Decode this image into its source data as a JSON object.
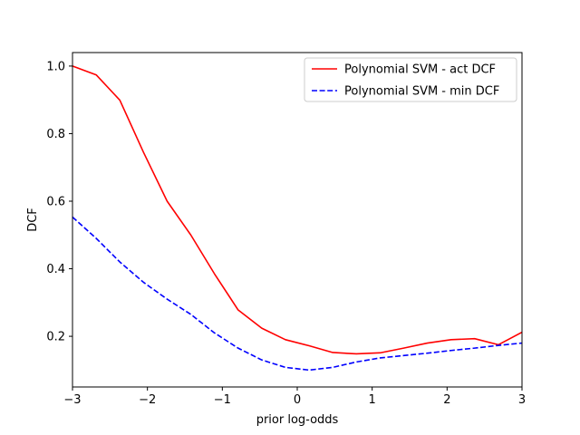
{
  "chart_data": {
    "type": "line",
    "title": "",
    "xlabel": "prior log-odds",
    "ylabel": "DCF",
    "xlim": [
      -3,
      3
    ],
    "ylim": [
      0.05,
      1.04
    ],
    "grid": false,
    "legend_position": "top-right",
    "x_ticks": [
      -3,
      -2,
      -1,
      0,
      1,
      2,
      3
    ],
    "x_tick_labels": [
      "−3",
      "−2",
      "−1",
      "0",
      "1",
      "2",
      "3"
    ],
    "y_ticks": [
      0.2,
      0.4,
      0.6,
      0.8,
      1.0
    ],
    "y_tick_labels": [
      "0.2",
      "0.4",
      "0.6",
      "0.8",
      "1.0"
    ],
    "x": [
      -3.0,
      -2.684,
      -2.368,
      -2.053,
      -1.737,
      -1.421,
      -1.105,
      -0.789,
      -0.474,
      -0.158,
      0.158,
      0.474,
      0.789,
      1.105,
      1.421,
      1.737,
      2.053,
      2.368,
      2.684,
      3.0
    ],
    "series": [
      {
        "name": "Polynomial SVM - act DCF",
        "color": "#ff0000",
        "style": "solid",
        "values": [
          1.0,
          0.974,
          0.899,
          0.745,
          0.6,
          0.5,
          0.385,
          0.278,
          0.224,
          0.19,
          0.172,
          0.152,
          0.148,
          0.151,
          0.165,
          0.18,
          0.19,
          0.193,
          0.175,
          0.212
        ]
      },
      {
        "name": "Polynomial SVM - min DCF",
        "color": "#0000ff",
        "style": "dashed",
        "values": [
          0.553,
          0.49,
          0.42,
          0.36,
          0.31,
          0.265,
          0.21,
          0.165,
          0.13,
          0.108,
          0.1,
          0.108,
          0.124,
          0.136,
          0.143,
          0.15,
          0.158,
          0.165,
          0.173,
          0.18
        ]
      }
    ]
  }
}
